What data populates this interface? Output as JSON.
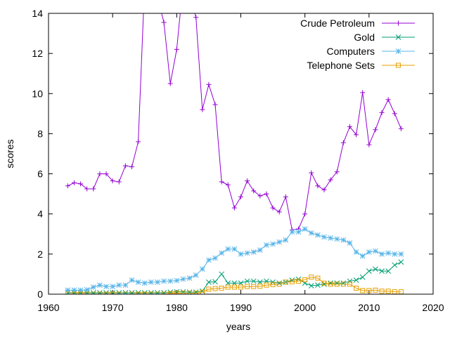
{
  "chart_data": {
    "type": "line",
    "title": "",
    "xlabel": "years",
    "ylabel": "scores",
    "xlim": [
      1960,
      2020
    ],
    "ylim": [
      0,
      14
    ],
    "xticks": [
      1960,
      1970,
      1980,
      1990,
      2000,
      2010,
      2020
    ],
    "yticks": [
      0,
      2,
      4,
      6,
      8,
      10,
      12,
      14
    ],
    "grid": false,
    "legend_position": "top-right",
    "x": [
      1963,
      1964,
      1965,
      1966,
      1967,
      1968,
      1969,
      1970,
      1971,
      1972,
      1973,
      1974,
      1975,
      1976,
      1977,
      1978,
      1979,
      1980,
      1981,
      1982,
      1983,
      1984,
      1985,
      1986,
      1987,
      1988,
      1989,
      1990,
      1991,
      1992,
      1993,
      1994,
      1995,
      1996,
      1997,
      1998,
      1999,
      2000,
      2001,
      2002,
      2003,
      2004,
      2005,
      2006,
      2007,
      2008,
      2009,
      2010,
      2011,
      2012,
      2013,
      2014,
      2015
    ],
    "series": [
      {
        "name": "Crude Petroleum",
        "color": "#9400d3",
        "marker": "plus",
        "values": [
          5.4,
          5.55,
          5.5,
          5.25,
          5.25,
          6.0,
          6.0,
          5.65,
          5.6,
          6.4,
          6.35,
          7.6,
          15.5,
          15.5,
          14.8,
          13.55,
          10.5,
          12.2,
          15.5,
          15.0,
          13.8,
          9.2,
          10.45,
          9.45,
          5.6,
          5.45,
          4.3,
          4.85,
          5.65,
          5.15,
          4.9,
          5.0,
          4.3,
          4.1,
          4.85,
          3.2,
          3.25,
          4.0,
          6.05,
          5.4,
          5.2,
          5.7,
          6.1,
          7.55,
          8.35,
          7.95,
          10.05,
          7.45,
          8.2,
          9.05,
          9.7,
          9.0,
          8.25
        ]
      },
      {
        "name": "Gold",
        "color": "#009e73",
        "marker": "cross",
        "values": [
          0.07,
          0.07,
          0.07,
          0.07,
          0.07,
          0.07,
          0.07,
          0.07,
          0.07,
          0.07,
          0.07,
          0.07,
          0.07,
          0.07,
          0.07,
          0.07,
          0.1,
          0.12,
          0.12,
          0.1,
          0.1,
          0.15,
          0.6,
          0.62,
          1.0,
          0.55,
          0.55,
          0.55,
          0.65,
          0.65,
          0.6,
          0.65,
          0.6,
          0.55,
          0.6,
          0.7,
          0.75,
          0.55,
          0.42,
          0.45,
          0.5,
          0.55,
          0.55,
          0.55,
          0.65,
          0.7,
          0.85,
          1.15,
          1.25,
          1.15,
          1.15,
          1.45,
          1.6
        ]
      },
      {
        "name": "Computers",
        "color": "#56b4e9",
        "marker": "star",
        "values": [
          0.2,
          0.2,
          0.2,
          0.22,
          0.35,
          0.45,
          0.38,
          0.38,
          0.45,
          0.45,
          0.7,
          0.6,
          0.55,
          0.6,
          0.6,
          0.65,
          0.65,
          0.68,
          0.75,
          0.8,
          0.95,
          1.25,
          1.7,
          1.8,
          2.05,
          2.25,
          2.25,
          2.0,
          2.05,
          2.1,
          2.2,
          2.45,
          2.5,
          2.6,
          2.7,
          3.1,
          3.1,
          3.25,
          3.05,
          2.95,
          2.85,
          2.8,
          2.75,
          2.7,
          2.55,
          2.1,
          1.9,
          2.1,
          2.15,
          2.0,
          2.05,
          2.0,
          2.0
        ]
      },
      {
        "name": "Telephone Sets",
        "color": "#e69f00",
        "marker": "square",
        "values": [
          0.0,
          0.0,
          0.0,
          0.0,
          0.0,
          0.0,
          0.0,
          0.0,
          0.0,
          0.0,
          0.0,
          0.0,
          0.0,
          0.0,
          0.0,
          0.0,
          0.03,
          0.05,
          0.05,
          0.05,
          0.05,
          0.1,
          0.25,
          0.28,
          0.3,
          0.35,
          0.35,
          0.35,
          0.38,
          0.38,
          0.4,
          0.45,
          0.48,
          0.5,
          0.6,
          0.62,
          0.65,
          0.72,
          0.85,
          0.8,
          0.55,
          0.5,
          0.5,
          0.5,
          0.5,
          0.3,
          0.18,
          0.18,
          0.2,
          0.15,
          0.15,
          0.12,
          0.12
        ]
      }
    ]
  }
}
